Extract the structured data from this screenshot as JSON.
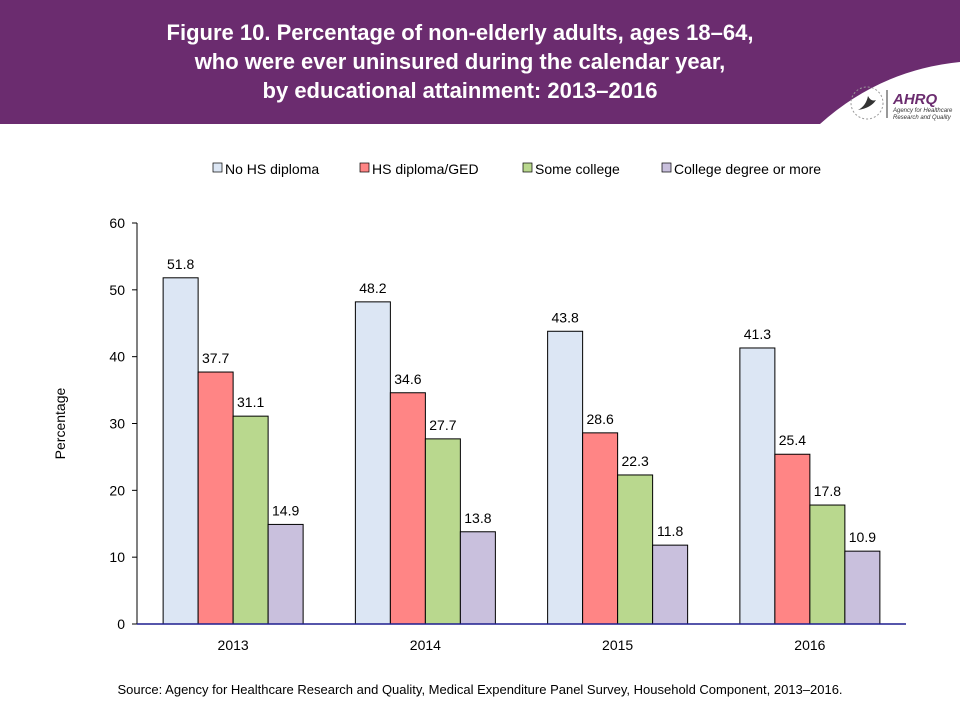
{
  "header": {
    "title_lines": [
      "Figure 10. Percentage of non-elderly adults, ages 18–64,",
      "who were ever uninsured during the calendar year,",
      "by educational attainment: 2013–2016"
    ],
    "logo_text": "AHRQ Agency for Healthcare Research and Quality"
  },
  "chart_data": {
    "type": "bar",
    "title": "Figure 10. Percentage of non-elderly adults, ages 18–64, who were ever uninsured during the calendar year, by educational attainment: 2013–2016",
    "categories": [
      "2013",
      "2014",
      "2015",
      "2016"
    ],
    "series": [
      {
        "name": "No HS diploma",
        "color": "#dce6f4",
        "values": [
          51.8,
          48.2,
          43.8,
          41.3
        ]
      },
      {
        "name": "HS diploma/GED",
        "color": "#ff8585",
        "values": [
          37.7,
          34.6,
          28.6,
          25.4
        ]
      },
      {
        "name": "Some college",
        "color": "#b9d88e",
        "values": [
          31.1,
          27.7,
          22.3,
          17.8
        ]
      },
      {
        "name": "College degree or more",
        "color": "#c9c0dd",
        "values": [
          14.9,
          13.8,
          11.8,
          10.9
        ]
      }
    ],
    "xlabel": "",
    "ylabel": "Percentage",
    "ylim": [
      0,
      60
    ],
    "yticks": [
      0,
      10,
      20,
      30,
      40,
      50,
      60
    ],
    "grid": false,
    "legend": "top"
  },
  "source": "Source: Agency for Healthcare Research and Quality, Medical Expenditure Panel Survey, Household Component, 2013–2016.",
  "colors": {
    "header": "#6b2c6f",
    "axis": "#1f1f8f"
  }
}
